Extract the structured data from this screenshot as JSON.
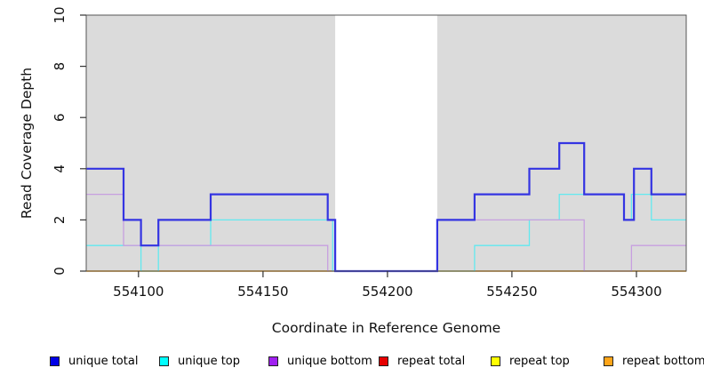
{
  "figure": {
    "xlabel": "Coordinate in Reference Genome",
    "ylabel": "Read Coverage Depth"
  },
  "legend": {
    "items": [
      {
        "label": "unique total",
        "color": "#0000E6"
      },
      {
        "label": "unique top",
        "color": "#00FFFF"
      },
      {
        "label": "unique bottom",
        "color": "#A020F0"
      },
      {
        "label": "repeat total",
        "color": "#E60000"
      },
      {
        "label": "repeat top",
        "color": "#FFFF00"
      },
      {
        "label": "repeat bottom",
        "color": "#FFA519"
      }
    ]
  },
  "chart_data": {
    "type": "line",
    "subtype": "step-coverage",
    "title": "",
    "xlabel": "Coordinate in Reference Genome",
    "ylabel": "Read Coverage Depth",
    "xlim": [
      554079,
      554320
    ],
    "ylim": [
      0,
      10
    ],
    "x_ticks": [
      "554100",
      "554150",
      "554200",
      "554250",
      "554300"
    ],
    "x_tick_values": [
      554100,
      554150,
      554200,
      554250,
      554300
    ],
    "y_ticks": [
      "0",
      "2",
      "4",
      "6",
      "8",
      "10"
    ],
    "y_tick_values": [
      0,
      2,
      4,
      6,
      8,
      10
    ],
    "grid": false,
    "legend_position": "bottom",
    "background": {
      "panel_color": "#DBDBDB",
      "uncovered_gap_region": [
        554179,
        554220
      ]
    },
    "step_mode": "post",
    "draw_order": [
      "repeat total",
      "repeat top",
      "repeat bottom",
      "unique top",
      "unique bottom",
      "unique total"
    ],
    "series": [
      {
        "name": "unique total",
        "color": "#3434E2",
        "line_width": 2.2,
        "steps": [
          [
            554079,
            4
          ],
          [
            554094,
            2
          ],
          [
            554101,
            1
          ],
          [
            554108,
            2
          ],
          [
            554129,
            3
          ],
          [
            554176,
            2
          ],
          [
            554179,
            0
          ],
          [
            554220,
            2
          ],
          [
            554235,
            3
          ],
          [
            554257,
            4
          ],
          [
            554269,
            5
          ],
          [
            554279,
            3
          ],
          [
            554295,
            2
          ],
          [
            554299,
            4
          ],
          [
            554306,
            3
          ]
        ]
      },
      {
        "name": "unique top",
        "color": "#62E9F0",
        "line_width": 1.3,
        "steps": [
          [
            554079,
            1
          ],
          [
            554101,
            0
          ],
          [
            554108,
            1
          ],
          [
            554129,
            2
          ],
          [
            554178,
            0
          ],
          [
            554235,
            1
          ],
          [
            554257,
            2
          ],
          [
            554269,
            3
          ],
          [
            554295,
            2
          ],
          [
            554298,
            3
          ],
          [
            554306,
            2
          ]
        ]
      },
      {
        "name": "unique bottom",
        "color": "#C79FE0",
        "line_width": 1.3,
        "steps": [
          [
            554079,
            3
          ],
          [
            554094,
            1
          ],
          [
            554176,
            0
          ],
          [
            554220,
            2
          ],
          [
            554279,
            0
          ],
          [
            554298,
            1
          ]
        ]
      },
      {
        "name": "repeat total",
        "color": "#DD2222",
        "line_width": 1.2,
        "steps": [
          [
            554079,
            0
          ]
        ]
      },
      {
        "name": "repeat top",
        "color": "#F0F000",
        "line_width": 1.2,
        "steps": [
          [
            554079,
            0
          ]
        ]
      },
      {
        "name": "repeat bottom",
        "color": "#FC9E08",
        "line_width": 1.2,
        "steps": [
          [
            554079,
            0
          ]
        ]
      }
    ]
  }
}
